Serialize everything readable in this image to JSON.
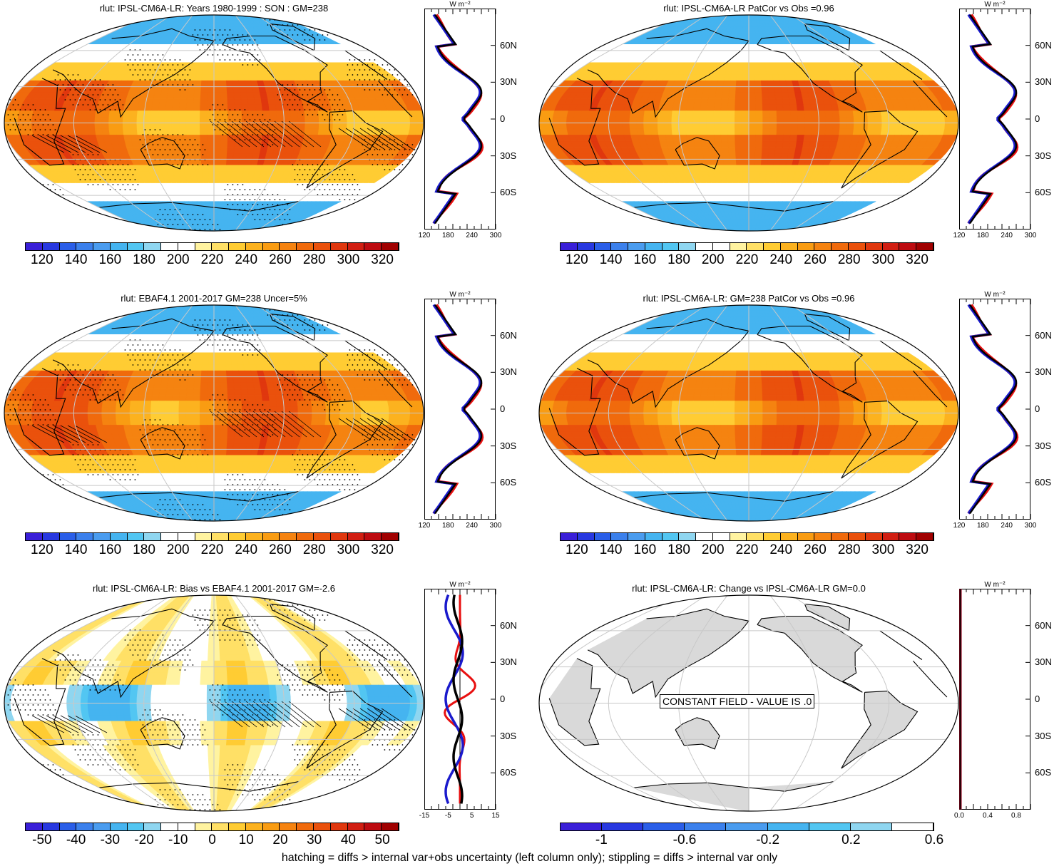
{
  "panels": [
    {
      "title": "rlut: IPSL-CM6A-LR: Years 1980-1999 : SON : GM=238",
      "field": "clim_model",
      "stipple": true,
      "hatch": true
    },
    {
      "title": "rlut: IPSL-CM6A-LR PatCor vs Obs =0.96",
      "field": "clim_model2",
      "stipple": false,
      "hatch": false
    },
    {
      "title": "rlut: EBAF4.1 2001-2017 GM=238 Uncer=5%",
      "field": "clim_obs",
      "stipple": true,
      "hatch": true
    },
    {
      "title": "rlut: IPSL-CM6A-LR: GM=238 PatCor vs Obs =0.96",
      "field": "clim_model2",
      "stipple": false,
      "hatch": false
    },
    {
      "title": "rlut: IPSL-CM6A-LR: Bias vs EBAF4.1 2001-2017  GM=-2.6",
      "field": "bias",
      "stipple": true,
      "hatch": true
    },
    {
      "title": "rlut: IPSL-CM6A-LR: Change vs IPSL-CM6A-LR GM=0.0",
      "field": "constant",
      "stipple": false,
      "hatch": false
    }
  ],
  "constant_label": "CONSTANT FIELD - VALUE IS .0",
  "colorbars": {
    "clim": {
      "labels": [
        "120",
        "140",
        "160",
        "180",
        "200",
        "220",
        "240",
        "260",
        "280",
        "300",
        "320"
      ],
      "colors": [
        "#3a1fd8",
        "#2838e0",
        "#2a5ee8",
        "#3b80ec",
        "#4a9cef",
        "#45b4f0",
        "#52c6f2",
        "#8fd6f0",
        "#ffffff",
        "#ffffff",
        "#fff3a0",
        "#ffe066",
        "#ffcc33",
        "#fcb21f",
        "#f99c12",
        "#f58310",
        "#f06a0c",
        "#ea510c",
        "#e0370e",
        "#d11e12",
        "#bd0b10",
        "#a00000"
      ]
    },
    "bias": {
      "labels": [
        "-50",
        "-40",
        "-30",
        "-20",
        "-10",
        "0",
        "10",
        "20",
        "30",
        "40",
        "50"
      ],
      "colors": [
        "#3a1fd8",
        "#2838e0",
        "#2a5ee8",
        "#3b80ec",
        "#4a9cef",
        "#45b4f0",
        "#52c6f2",
        "#8fd6f0",
        "#ffffff",
        "#ffffff",
        "#fff3a0",
        "#ffe066",
        "#ffcc33",
        "#fcb21f",
        "#f99c12",
        "#f58310",
        "#f06a0c",
        "#ea510c",
        "#e0370e",
        "#d11e12",
        "#bd0b10",
        "#a00000"
      ]
    },
    "change": {
      "labels": [
        "-1",
        "-0.6",
        "-0.2",
        "0.2",
        "0.6"
      ],
      "colors": [
        "#3a1fd8",
        "#2838e0",
        "#2a5ee8",
        "#3b80ec",
        "#4a9cef",
        "#45b4f0",
        "#52c6f2",
        "#8fd6f0",
        "#ffffff"
      ]
    }
  },
  "zonal": {
    "units": "W m⁻²",
    "lat_labels": [
      "60N",
      "30N",
      "0",
      "30S",
      "60S"
    ],
    "clim_xticks": [
      "120",
      "180",
      "240",
      "300"
    ],
    "bias_xticks": [
      "-15",
      "-5",
      "5",
      "15"
    ],
    "change_xticks": [
      "0.0",
      "0.4",
      "0.8"
    ]
  },
  "footnote": "hatching = diffs > internal var+obs uncertainty (left column only); stippling = diffs > internal var only",
  "colors": {
    "model_line": "#1a1acc",
    "obs_line": "#e81010",
    "black_line": "#000000",
    "land": "#d9d9d9",
    "grid": "#c8c8c8"
  }
}
